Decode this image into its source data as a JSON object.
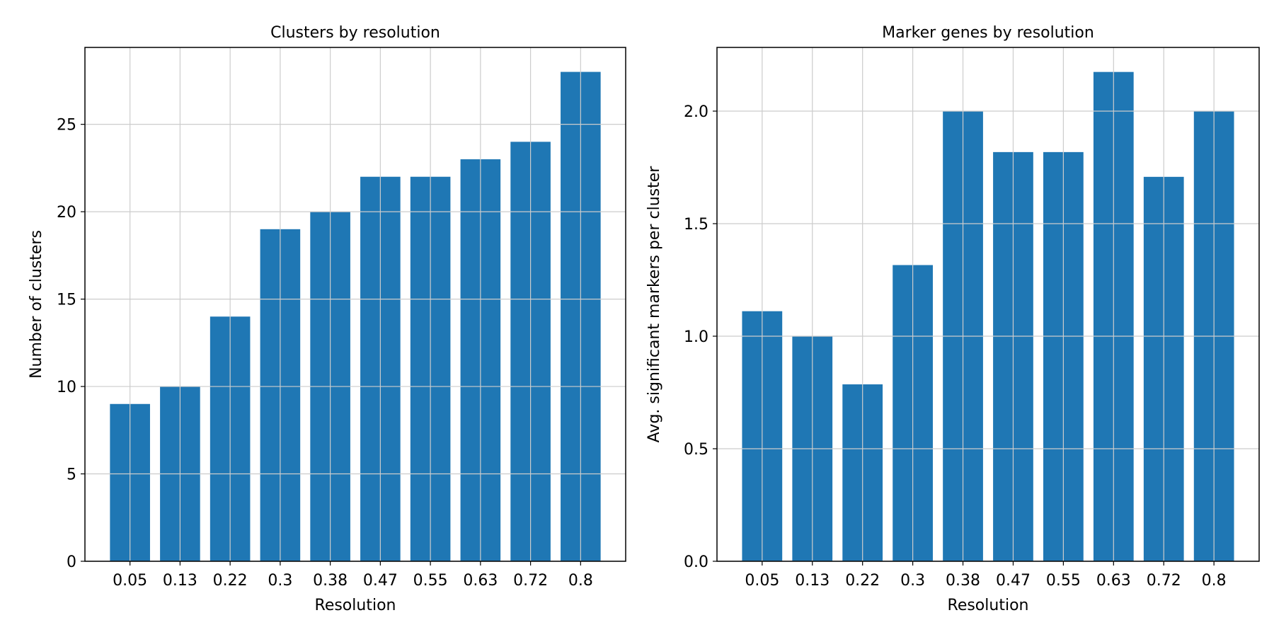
{
  "chart_data": [
    {
      "type": "bar",
      "title": "Clusters by resolution",
      "xlabel": "Resolution",
      "ylabel": "Number of clusters",
      "categories": [
        "0.05",
        "0.13",
        "0.22",
        "0.3",
        "0.38",
        "0.47",
        "0.55",
        "0.63",
        "0.72",
        "0.8"
      ],
      "values": [
        9,
        10,
        14,
        19,
        20,
        22,
        22,
        23,
        24,
        28
      ],
      "ylim": [
        0,
        29.4
      ],
      "yticks": [
        0,
        5,
        10,
        15,
        20,
        25
      ],
      "ytick_labels": [
        "0",
        "5",
        "10",
        "15",
        "20",
        "25"
      ],
      "grid": true,
      "bar_color": "#1f77b4"
    },
    {
      "type": "bar",
      "title": "Marker genes by resolution",
      "xlabel": "Resolution",
      "ylabel": "Avg. significant markers per cluster",
      "categories": [
        "0.05",
        "0.13",
        "0.22",
        "0.3",
        "0.38",
        "0.47",
        "0.55",
        "0.63",
        "0.72",
        "0.8"
      ],
      "values": [
        1.111,
        1.0,
        0.786,
        1.316,
        2.0,
        1.818,
        1.818,
        2.174,
        1.708,
        2.0
      ],
      "ylim": [
        0,
        2.283
      ],
      "yticks": [
        0,
        0.5,
        1.0,
        1.5,
        2.0
      ],
      "ytick_labels": [
        "0.0",
        "0.5",
        "1.0",
        "1.5",
        "2.0"
      ],
      "grid": true,
      "bar_color": "#1f77b4"
    }
  ]
}
